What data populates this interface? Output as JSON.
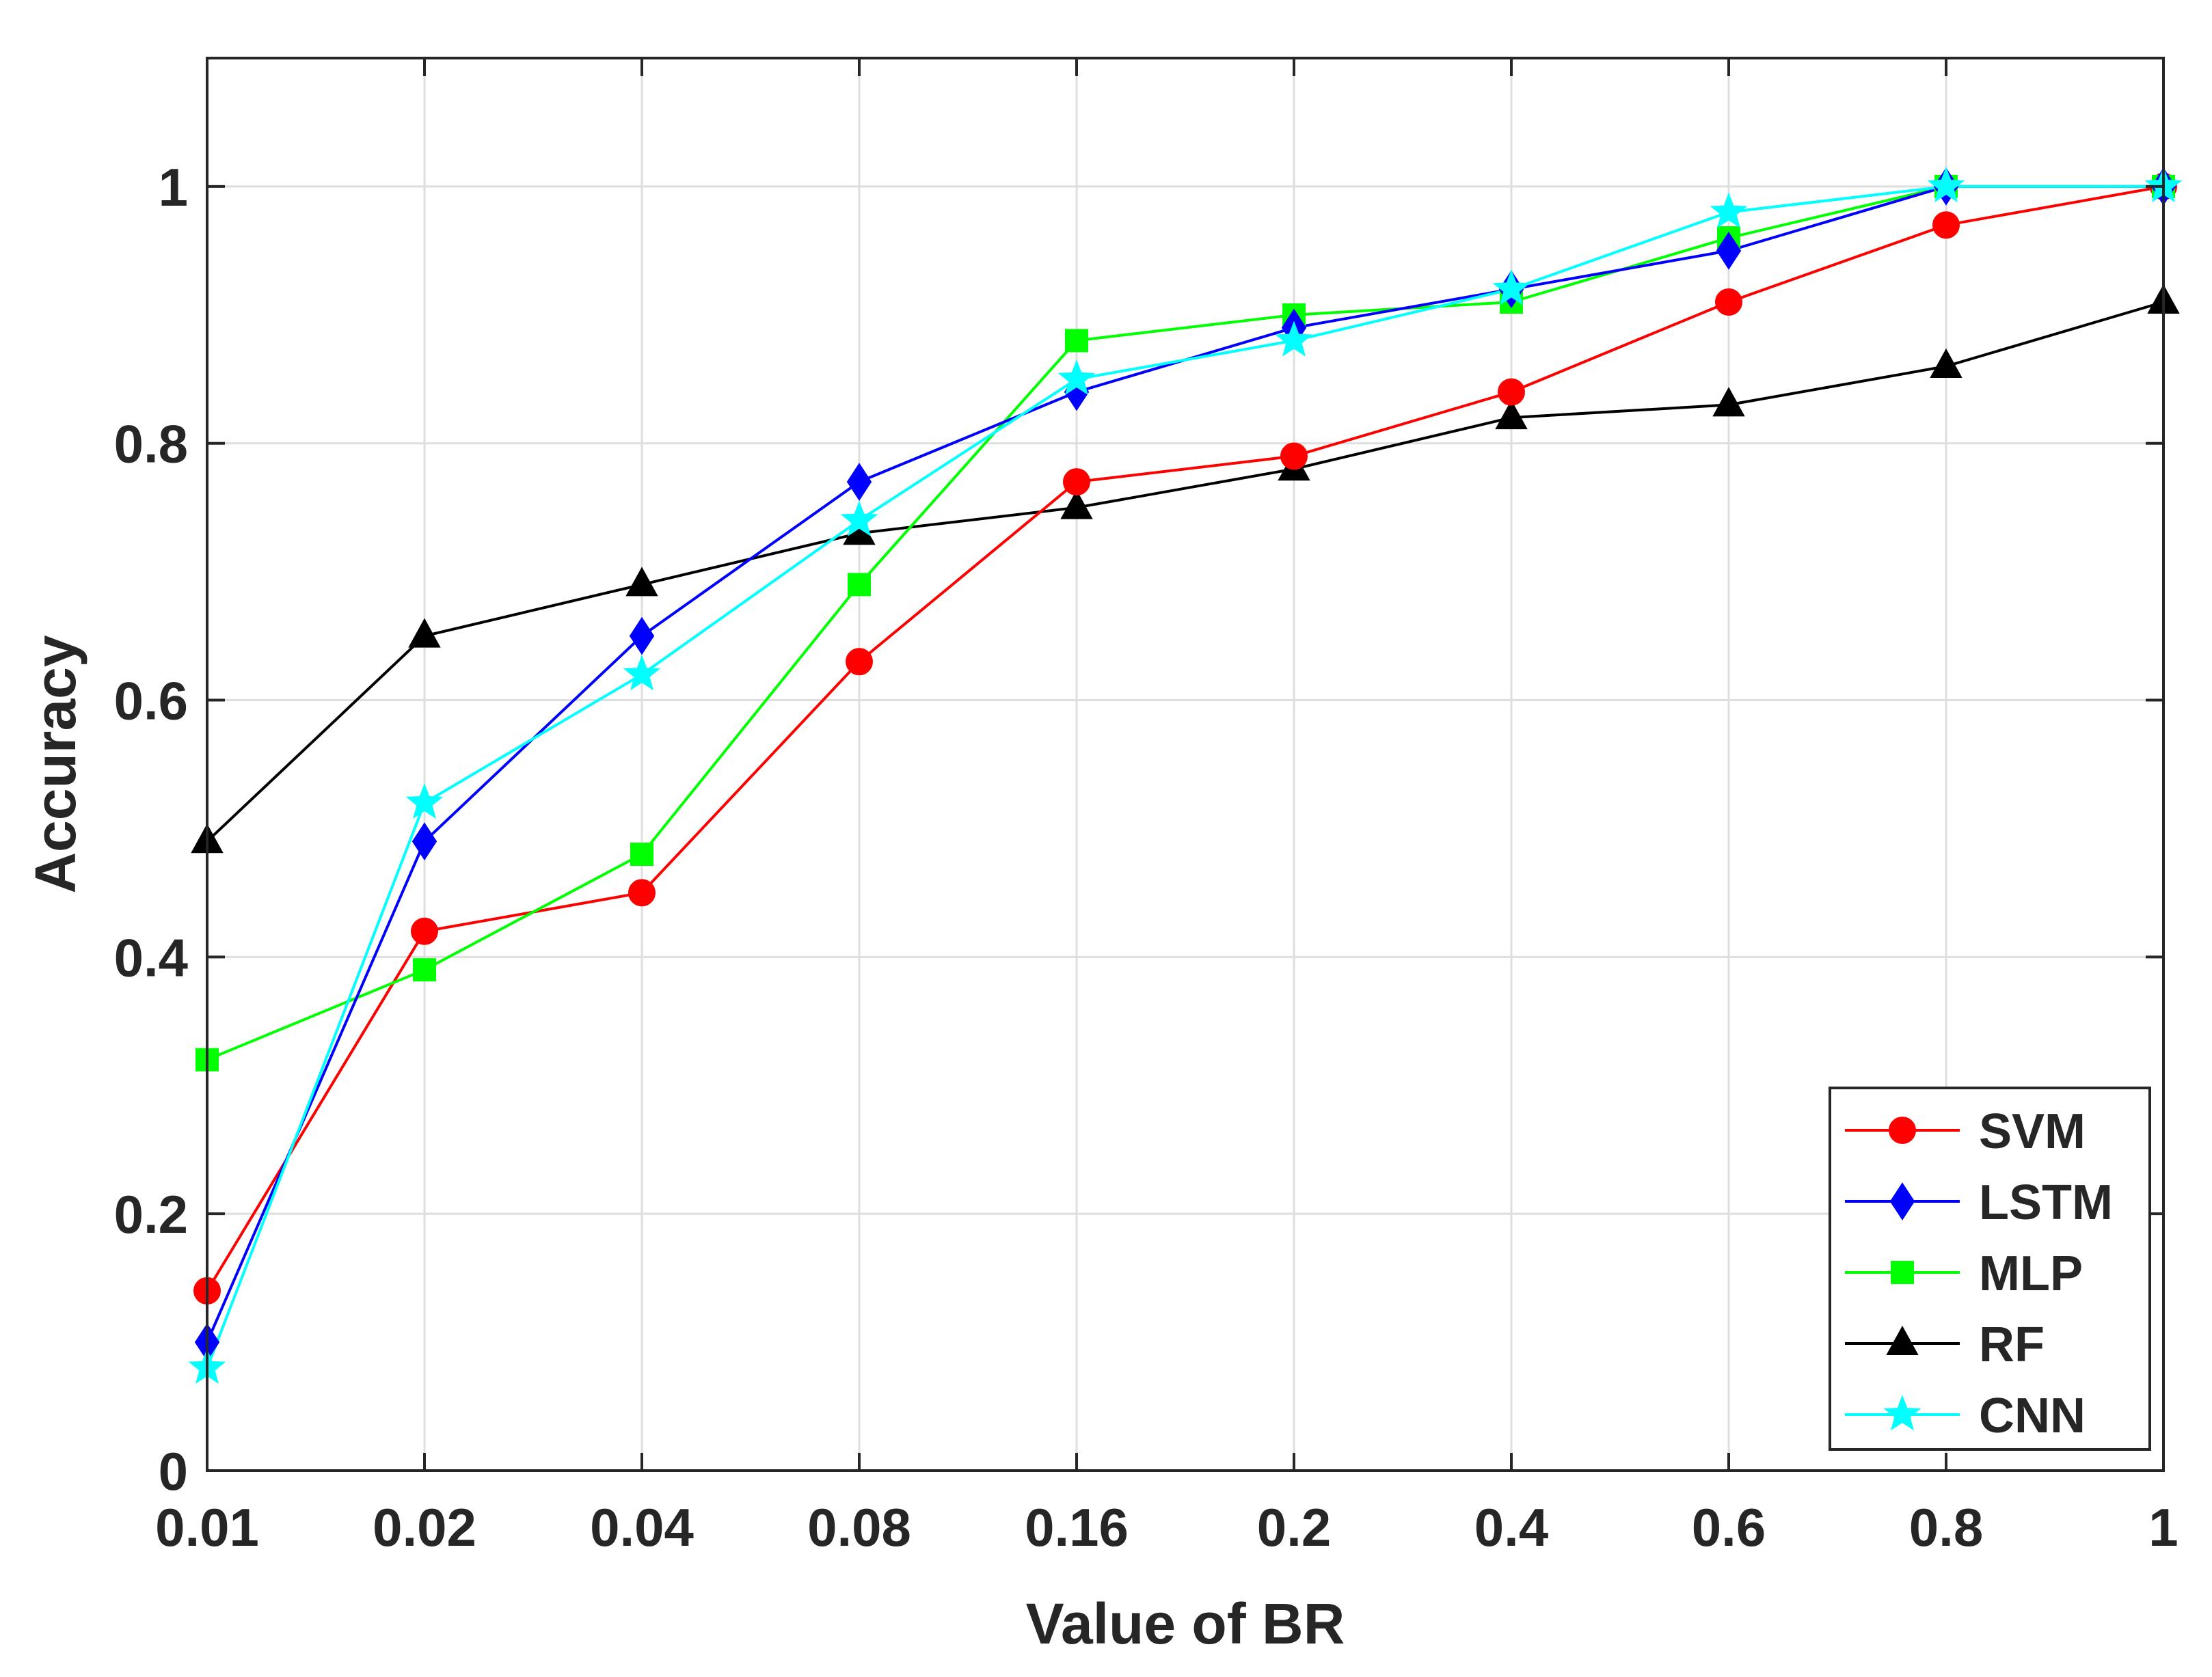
{
  "chart_data": {
    "type": "line",
    "title": "",
    "xlabel": "Value of BR",
    "ylabel": "Accuracy",
    "categories": [
      "0.01",
      "0.02",
      "0.04",
      "0.08",
      "0.16",
      "0.2",
      "0.4",
      "0.6",
      "0.8",
      "1"
    ],
    "yticks": [
      "0",
      "0.2",
      "0.4",
      "0.6",
      "0.8",
      "1"
    ],
    "ytick_values": [
      0,
      0.2,
      0.4,
      0.6,
      0.8,
      1
    ],
    "ylim": [
      0,
      1.1
    ],
    "grid": true,
    "legend_position": "bottom-right",
    "series": [
      {
        "name": "SVM",
        "color": "#ff0000",
        "marker": "circle",
        "values": [
          0.14,
          0.42,
          0.45,
          0.63,
          0.77,
          0.79,
          0.84,
          0.91,
          0.97,
          1.0
        ]
      },
      {
        "name": "LSTM",
        "color": "#0000ff",
        "marker": "diamond",
        "values": [
          0.1,
          0.49,
          0.65,
          0.77,
          0.84,
          0.89,
          0.92,
          0.95,
          1.0,
          1.0
        ]
      },
      {
        "name": "MLP",
        "color": "#00ff00",
        "marker": "square",
        "values": [
          0.32,
          0.39,
          0.48,
          0.69,
          0.88,
          0.9,
          0.91,
          0.96,
          1.0,
          1.0
        ]
      },
      {
        "name": "RF",
        "color": "#000000",
        "marker": "triangle",
        "values": [
          0.49,
          0.65,
          0.69,
          0.73,
          0.75,
          0.78,
          0.82,
          0.83,
          0.86,
          0.91
        ]
      },
      {
        "name": "CNN",
        "color": "#00ffff",
        "marker": "star",
        "values": [
          0.08,
          0.52,
          0.62,
          0.74,
          0.85,
          0.88,
          0.92,
          0.98,
          1.0,
          1.0
        ]
      }
    ]
  }
}
